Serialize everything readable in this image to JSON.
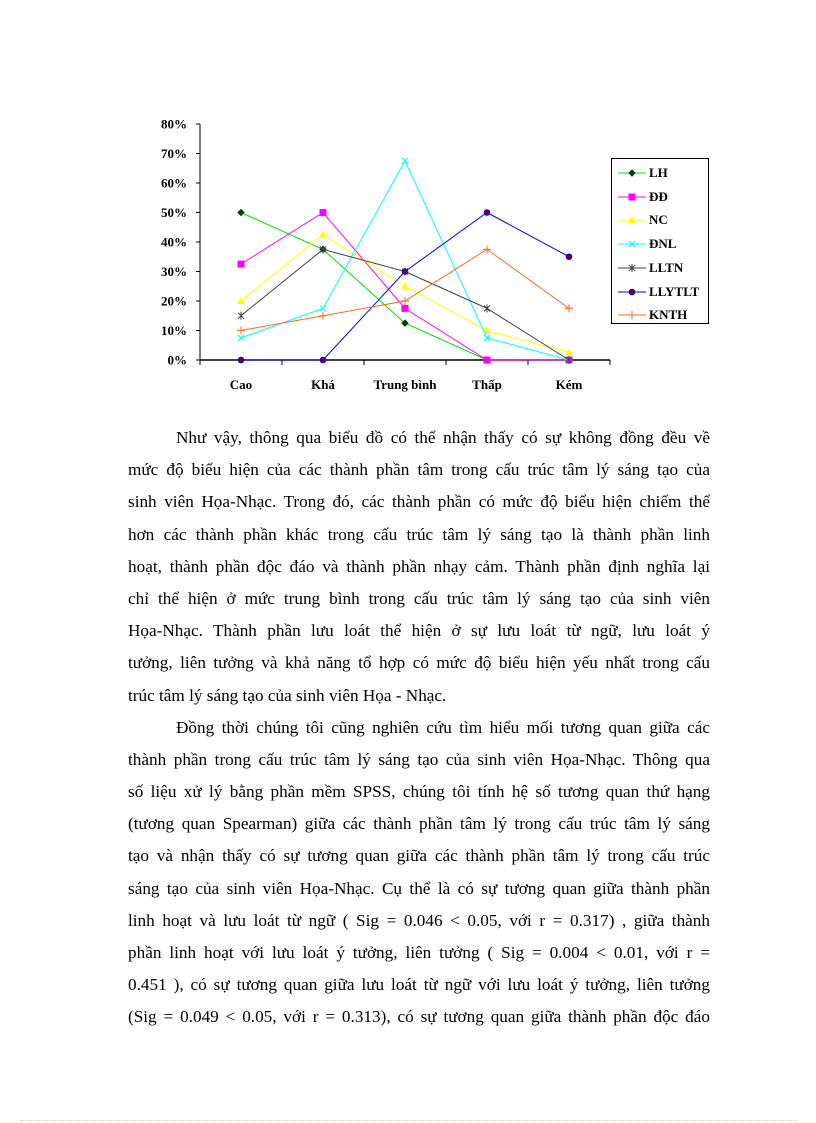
{
  "chart_data": {
    "type": "line",
    "categories": [
      "Cao",
      "Khá",
      "Trung bình",
      "Thấp",
      "Kém"
    ],
    "y_tick_labels": [
      "0%",
      "10%",
      "20%",
      "30%",
      "40%",
      "50%",
      "60%",
      "70%",
      "80%"
    ],
    "ylim": [
      0,
      80
    ],
    "grid": false,
    "legend_position": "right",
    "series": [
      {
        "name": "LH",
        "values": [
          50,
          37.5,
          12.5,
          0,
          0
        ],
        "color": "#00e000",
        "marker": "diamond"
      },
      {
        "name": "ĐĐ",
        "values": [
          32.5,
          50,
          17.5,
          0,
          0
        ],
        "color": "#ff00ff",
        "marker": "square"
      },
      {
        "name": "NC",
        "values": [
          20,
          42.5,
          25,
          10,
          2.5
        ],
        "color": "#ffff00",
        "marker": "triangle"
      },
      {
        "name": "ĐNL",
        "values": [
          7.5,
          17.5,
          67.5,
          7.5,
          0
        ],
        "color": "#00ffff",
        "marker": "x"
      },
      {
        "name": "LLTN",
        "values": [
          15,
          37.5,
          30,
          17.5,
          0
        ],
        "color": "#404040",
        "marker": "star"
      },
      {
        "name": "LLYTLT",
        "values": [
          0,
          0,
          30,
          50,
          35
        ],
        "color": "#0000ff",
        "marker": "circle"
      },
      {
        "name": "KNTH",
        "values": [
          10,
          15,
          20,
          37.5,
          17.5
        ],
        "color": "#ff6a1a",
        "marker": "plus"
      }
    ]
  },
  "body": {
    "paragraphs": [
      {
        "lines": [
          "Như vậy, thông qua biểu đồ có thể nhận thấy có sự không đồng đều về",
          "mức độ biểu hiện của các thành phần tâm trong cấu trúc tâm lý sáng tạo của",
          "sinh viên Họa-Nhạc. Trong đó, các thành phần có mức độ biểu hiện chiếm thế",
          "hơn các thành phần khác trong cấu trúc tâm lý sáng tạo là thành phần linh",
          "hoạt, thành phần độc đáo và thành phần nhạy cảm. Thành phần định nghĩa lại",
          "chỉ thể hiện ở mức trung bình trong cấu trúc tâm lý sáng tạo của sinh viên",
          "Họa-Nhạc. Thành phần lưu loát thể hiện ở sự lưu loát từ ngữ, lưu loát ý",
          "tưởng, liên tưởng và khả năng tổ hợp có mức độ biểu hiện yếu nhất trong cấu",
          "trúc tâm lý sáng tạo của sinh viên Họa - Nhạc."
        ]
      },
      {
        "lines": [
          "Đồng thời chúng tôi cũng nghiên cứu tìm hiểu mối tương quan giữa các",
          "thành phần trong cấu trúc tâm lý sáng tạo của sinh viên Họa-Nhạc. Thông qua",
          "số liệu xử lý bằng phần mềm SPSS, chúng tôi tính hệ số tương quan thứ hạng",
          "(tương quan Spearman) giữa các thành phần tâm lý trong cấu trúc tâm lý sáng",
          "tạo và nhận thấy có sự tương quan giữa các thành phần tâm lý trong cấu trúc",
          "sáng tạo của sinh viên Họa-Nhạc. Cụ thể là có sự tương quan giữa thành phần",
          "linh hoạt và lưu loát từ ngữ ( Sig = 0.046 < 0.05, với r = 0.317) , giữa thành",
          "phần linh hoạt với lưu loát ý tưởng, liên tưởng ( Sig = 0.004 < 0.01, với r =",
          "0.451 ), có sự tương quan giữa lưu loát từ ngữ với lưu loát ý tưởng, liên tưởng",
          "(Sig = 0.049 < 0.05, với r = 0.313), có sự tương quan giữa thành phần độc đáo"
        ]
      }
    ]
  }
}
